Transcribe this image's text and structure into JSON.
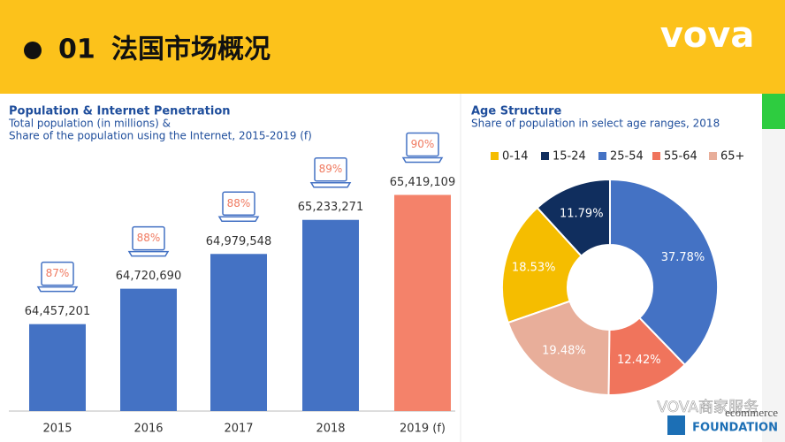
{
  "header": {
    "number": "01",
    "title": "法国市场概况",
    "logo": "vova"
  },
  "footer": {
    "watermark": "VOVA商家服务",
    "brand_top": "ecommerce",
    "brand_bottom": "FOUNDATION"
  },
  "chart_data": [
    {
      "type": "bar",
      "title": "Population & Internet Penetration",
      "subtitle": [
        "Total population (in millions) &",
        "Share of the population using the Internet, 2015-2019 (f)"
      ],
      "categories": [
        "2015",
        "2016",
        "2017",
        "2018",
        "2019 (f)"
      ],
      "values": [
        64457201,
        64720690,
        64979548,
        65233271,
        65419109
      ],
      "value_labels": [
        "64,457,201",
        "64,720,690",
        "64,979,548",
        "65,233,271",
        "65,419,109"
      ],
      "colors": [
        "#4472c4",
        "#4472c4",
        "#4472c4",
        "#4472c4",
        "#f4826a"
      ],
      "penetration": [
        87,
        88,
        88,
        89,
        90
      ],
      "penetration_labels": [
        "87%",
        "88%",
        "88%",
        "89%",
        "90%"
      ],
      "ylim": [
        63810000,
        65600000
      ]
    },
    {
      "type": "pie",
      "title": "Age Structure",
      "subtitle": [
        "Share of population in select age ranges, 2018"
      ],
      "categories": [
        "0-14",
        "15-24",
        "25-54",
        "55-64",
        "65+"
      ],
      "values": [
        18.53,
        11.79,
        37.78,
        12.42,
        19.48
      ],
      "value_labels": [
        "18.53%",
        "11.79%",
        "37.78%",
        "12.42%",
        "19.48%"
      ],
      "colors": [
        "#f5bd00",
        "#102e5e",
        "#4472c4",
        "#f0745c",
        "#e8ae9a"
      ]
    }
  ]
}
